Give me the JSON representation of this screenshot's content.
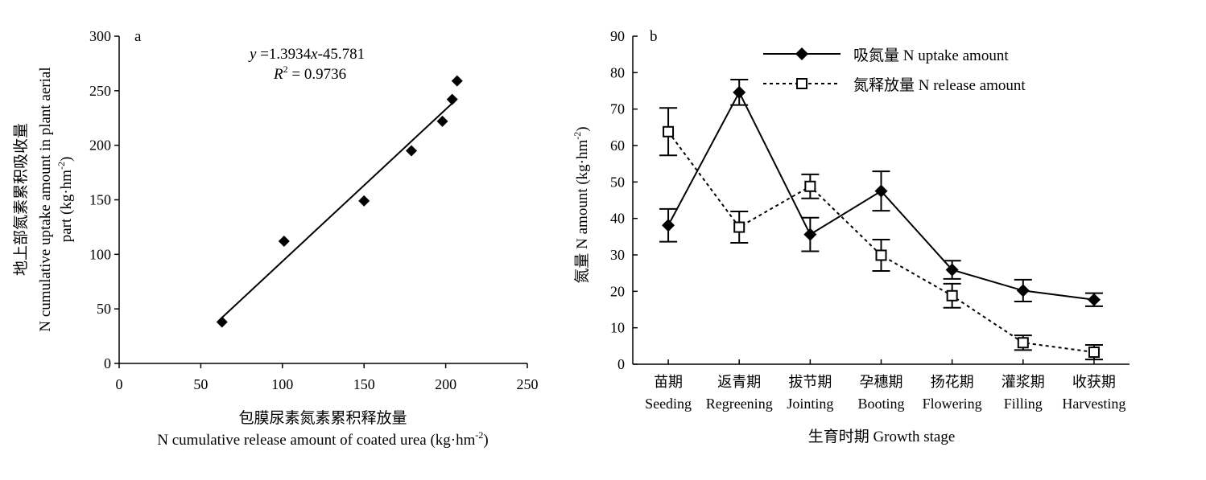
{
  "chart_data": [
    {
      "type": "scatter",
      "panel": "a",
      "xlabel_cn": "包膜尿素氮素累积释放量",
      "xlabel_en": "N cumulative release amount of coated urea (kg·hm",
      "xlabel_en_sup": "-2",
      "xlabel_en_end": ")",
      "ylabel_cn": "地上部氮素累积吸收量",
      "ylabel_en1": "N cumulative uptake amount in plant aerial",
      "ylabel_en2": "part (kg·hm",
      "ylabel_en2_sup": "-2",
      "ylabel_en2_end": ")",
      "xlim": [
        0,
        250
      ],
      "ylim": [
        0,
        300
      ],
      "xticks": [
        "0",
        "50",
        "100",
        "150",
        "200",
        "250"
      ],
      "yticks": [
        "0",
        "50",
        "100",
        "150",
        "200",
        "250",
        "300"
      ],
      "x": [
        63,
        101,
        150,
        179,
        198,
        204,
        207
      ],
      "y": [
        38,
        112,
        149,
        195,
        222,
        242,
        259
      ],
      "fit_line": {
        "slope": 1.3934,
        "intercept": -45.781,
        "x_range": [
          63,
          207
        ]
      },
      "equation_lhs": "y",
      "equation_mid": " =1.3934",
      "equation_x": "x",
      "equation_rhs": "-45.781",
      "r2_label": "R",
      "r2_sup": "2",
      "r2_value": " = 0.9736"
    },
    {
      "type": "line",
      "panel": "b",
      "xlabel": "生育时期 Growth stage",
      "ylabel": "氮量 N amount (kg·hm",
      "ylabel_sup": "-2",
      "ylabel_end": ")",
      "ylim": [
        0,
        90
      ],
      "yticks": [
        "0",
        "10",
        "20",
        "30",
        "40",
        "50",
        "60",
        "70",
        "80",
        "90"
      ],
      "categories_cn": [
        "苗期",
        "返青期",
        "拔节期",
        "孕穗期",
        "扬花期",
        "灌浆期",
        "收获期"
      ],
      "categories_en": [
        "Seeding",
        "Regreening",
        "Jointing",
        "Booting",
        "Flowering",
        "Filling",
        "Harvesting"
      ],
      "legend_position": "top",
      "series": [
        {
          "name": "吸氮量 N uptake amount",
          "values": [
            38.1,
            74.6,
            35.6,
            47.5,
            25.9,
            20.2,
            17.7
          ],
          "error": [
            4.5,
            3.5,
            4.6,
            5.4,
            2.5,
            3.0,
            1.8
          ],
          "style": "solid",
          "marker": "diamond"
        },
        {
          "name": "氮释放量 N release amount",
          "values": [
            63.8,
            37.6,
            48.8,
            29.9,
            18.8,
            5.9,
            3.3
          ],
          "error": [
            6.5,
            4.3,
            3.3,
            4.3,
            3.3,
            2.0,
            2.0
          ],
          "style": "dotted",
          "marker": "open-square"
        }
      ]
    }
  ]
}
